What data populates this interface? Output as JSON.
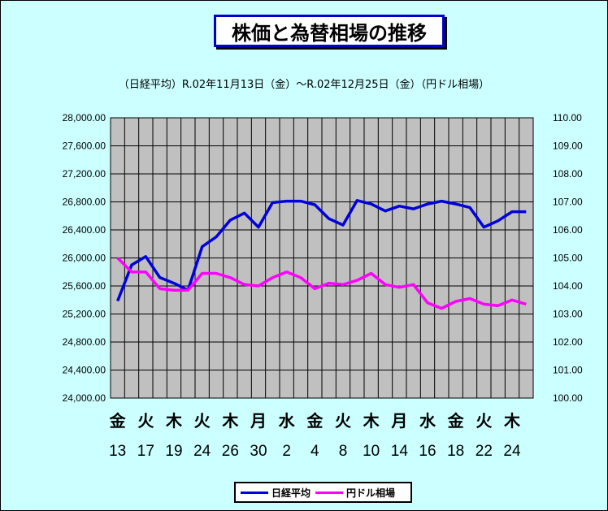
{
  "chart_data": {
    "type": "line",
    "title": "株価と為替相場の推移",
    "subtitle": "（日経平均）R.02年11月13日（金）～R.02年12月25日（金）（円ドル相場）",
    "left_axis": {
      "min": 24000,
      "max": 28000,
      "step": 400,
      "ticks": [
        "28,000.00",
        "27,600.00",
        "27,200.00",
        "26,800.00",
        "26,400.00",
        "26,000.00",
        "25,600.00",
        "25,200.00",
        "24,800.00",
        "24,400.00",
        "24,000.00"
      ]
    },
    "right_axis": {
      "min": 100,
      "max": 110,
      "step": 1,
      "ticks": [
        "110.00",
        "109.00",
        "108.00",
        "107.00",
        "106.00",
        "105.00",
        "104.00",
        "103.00",
        "102.00",
        "101.00",
        "100.00"
      ]
    },
    "x_day_labels": [
      "金",
      "火",
      "木",
      "火",
      "木",
      "月",
      "水",
      "金",
      "火",
      "木",
      "月",
      "水",
      "金",
      "火",
      "木"
    ],
    "x_date_labels": [
      "13",
      "17",
      "19",
      "24",
      "26",
      "30",
      "2",
      "4",
      "8",
      "10",
      "14",
      "16",
      "18",
      "22",
      "24"
    ],
    "grid": true,
    "legend_position": "bottom",
    "series": [
      {
        "name": "日経平均",
        "color": "#0000dd",
        "values": [
          25385,
          25900,
          26020,
          25720,
          25640,
          25540,
          26160,
          26300,
          26540,
          26640,
          26440,
          26790,
          26810,
          26810,
          26760,
          26560,
          26470,
          26820,
          26770,
          26670,
          26740,
          26700,
          26770,
          26810,
          26770,
          26720,
          26440,
          26530,
          26660,
          26660
        ]
      },
      {
        "name": "円ドル相場",
        "color": "#ff00ff",
        "values": [
          105.0,
          104.5,
          104.5,
          103.9,
          103.85,
          103.85,
          104.45,
          104.45,
          104.3,
          104.05,
          104.0,
          104.3,
          104.5,
          104.3,
          103.9,
          104.1,
          104.05,
          104.2,
          104.45,
          104.05,
          103.95,
          104.05,
          103.4,
          103.2,
          103.45,
          103.55,
          103.35,
          103.3,
          103.5,
          103.35
        ]
      }
    ]
  }
}
